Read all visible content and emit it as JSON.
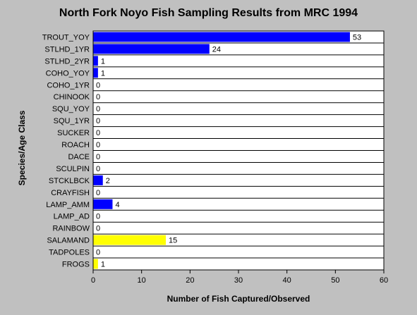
{
  "chart_data": {
    "type": "bar",
    "orientation": "horizontal",
    "title": "North Fork Noyo Fish Sampling Results from MRC 1994",
    "xlabel": "Number of Fish Captured/Observed",
    "ylabel": "Species/Age Class",
    "xlim": [
      0,
      60
    ],
    "xticks": [
      0,
      10,
      20,
      30,
      40,
      50,
      60
    ],
    "grid": "horizontal row separators",
    "legend": "none",
    "categories": [
      "TROUT_YOY",
      "STLHD_1YR",
      "STLHD_2YR",
      "COHO_YOY",
      "COHO_1YR",
      "CHINOOK",
      "SQU_YOY",
      "SQU_1YR",
      "SUCKER",
      "ROACH",
      "DACE",
      "SCULPIN",
      "STCKLBCK",
      "CRAYFISH",
      "LAMP_AMM",
      "LAMP_AD",
      "RAINBOW",
      "SALAMAND",
      "TADPOLES",
      "FROGS"
    ],
    "values": [
      53,
      24,
      1,
      1,
      0,
      0,
      0,
      0,
      0,
      0,
      0,
      0,
      2,
      0,
      4,
      0,
      0,
      15,
      0,
      1
    ],
    "bar_colors": [
      "#0000ff",
      "#0000ff",
      "#0000ff",
      "#0000ff",
      "#0000ff",
      "#0000ff",
      "#0000ff",
      "#0000ff",
      "#0000ff",
      "#0000ff",
      "#0000ff",
      "#0000ff",
      "#0000ff",
      "#0000ff",
      "#0000ff",
      "#0000ff",
      "#0000ff",
      "#ffff00",
      "#ffff00",
      "#ffff00"
    ],
    "plot_background": "#ffffff",
    "page_background": "#c0c0c0"
  }
}
